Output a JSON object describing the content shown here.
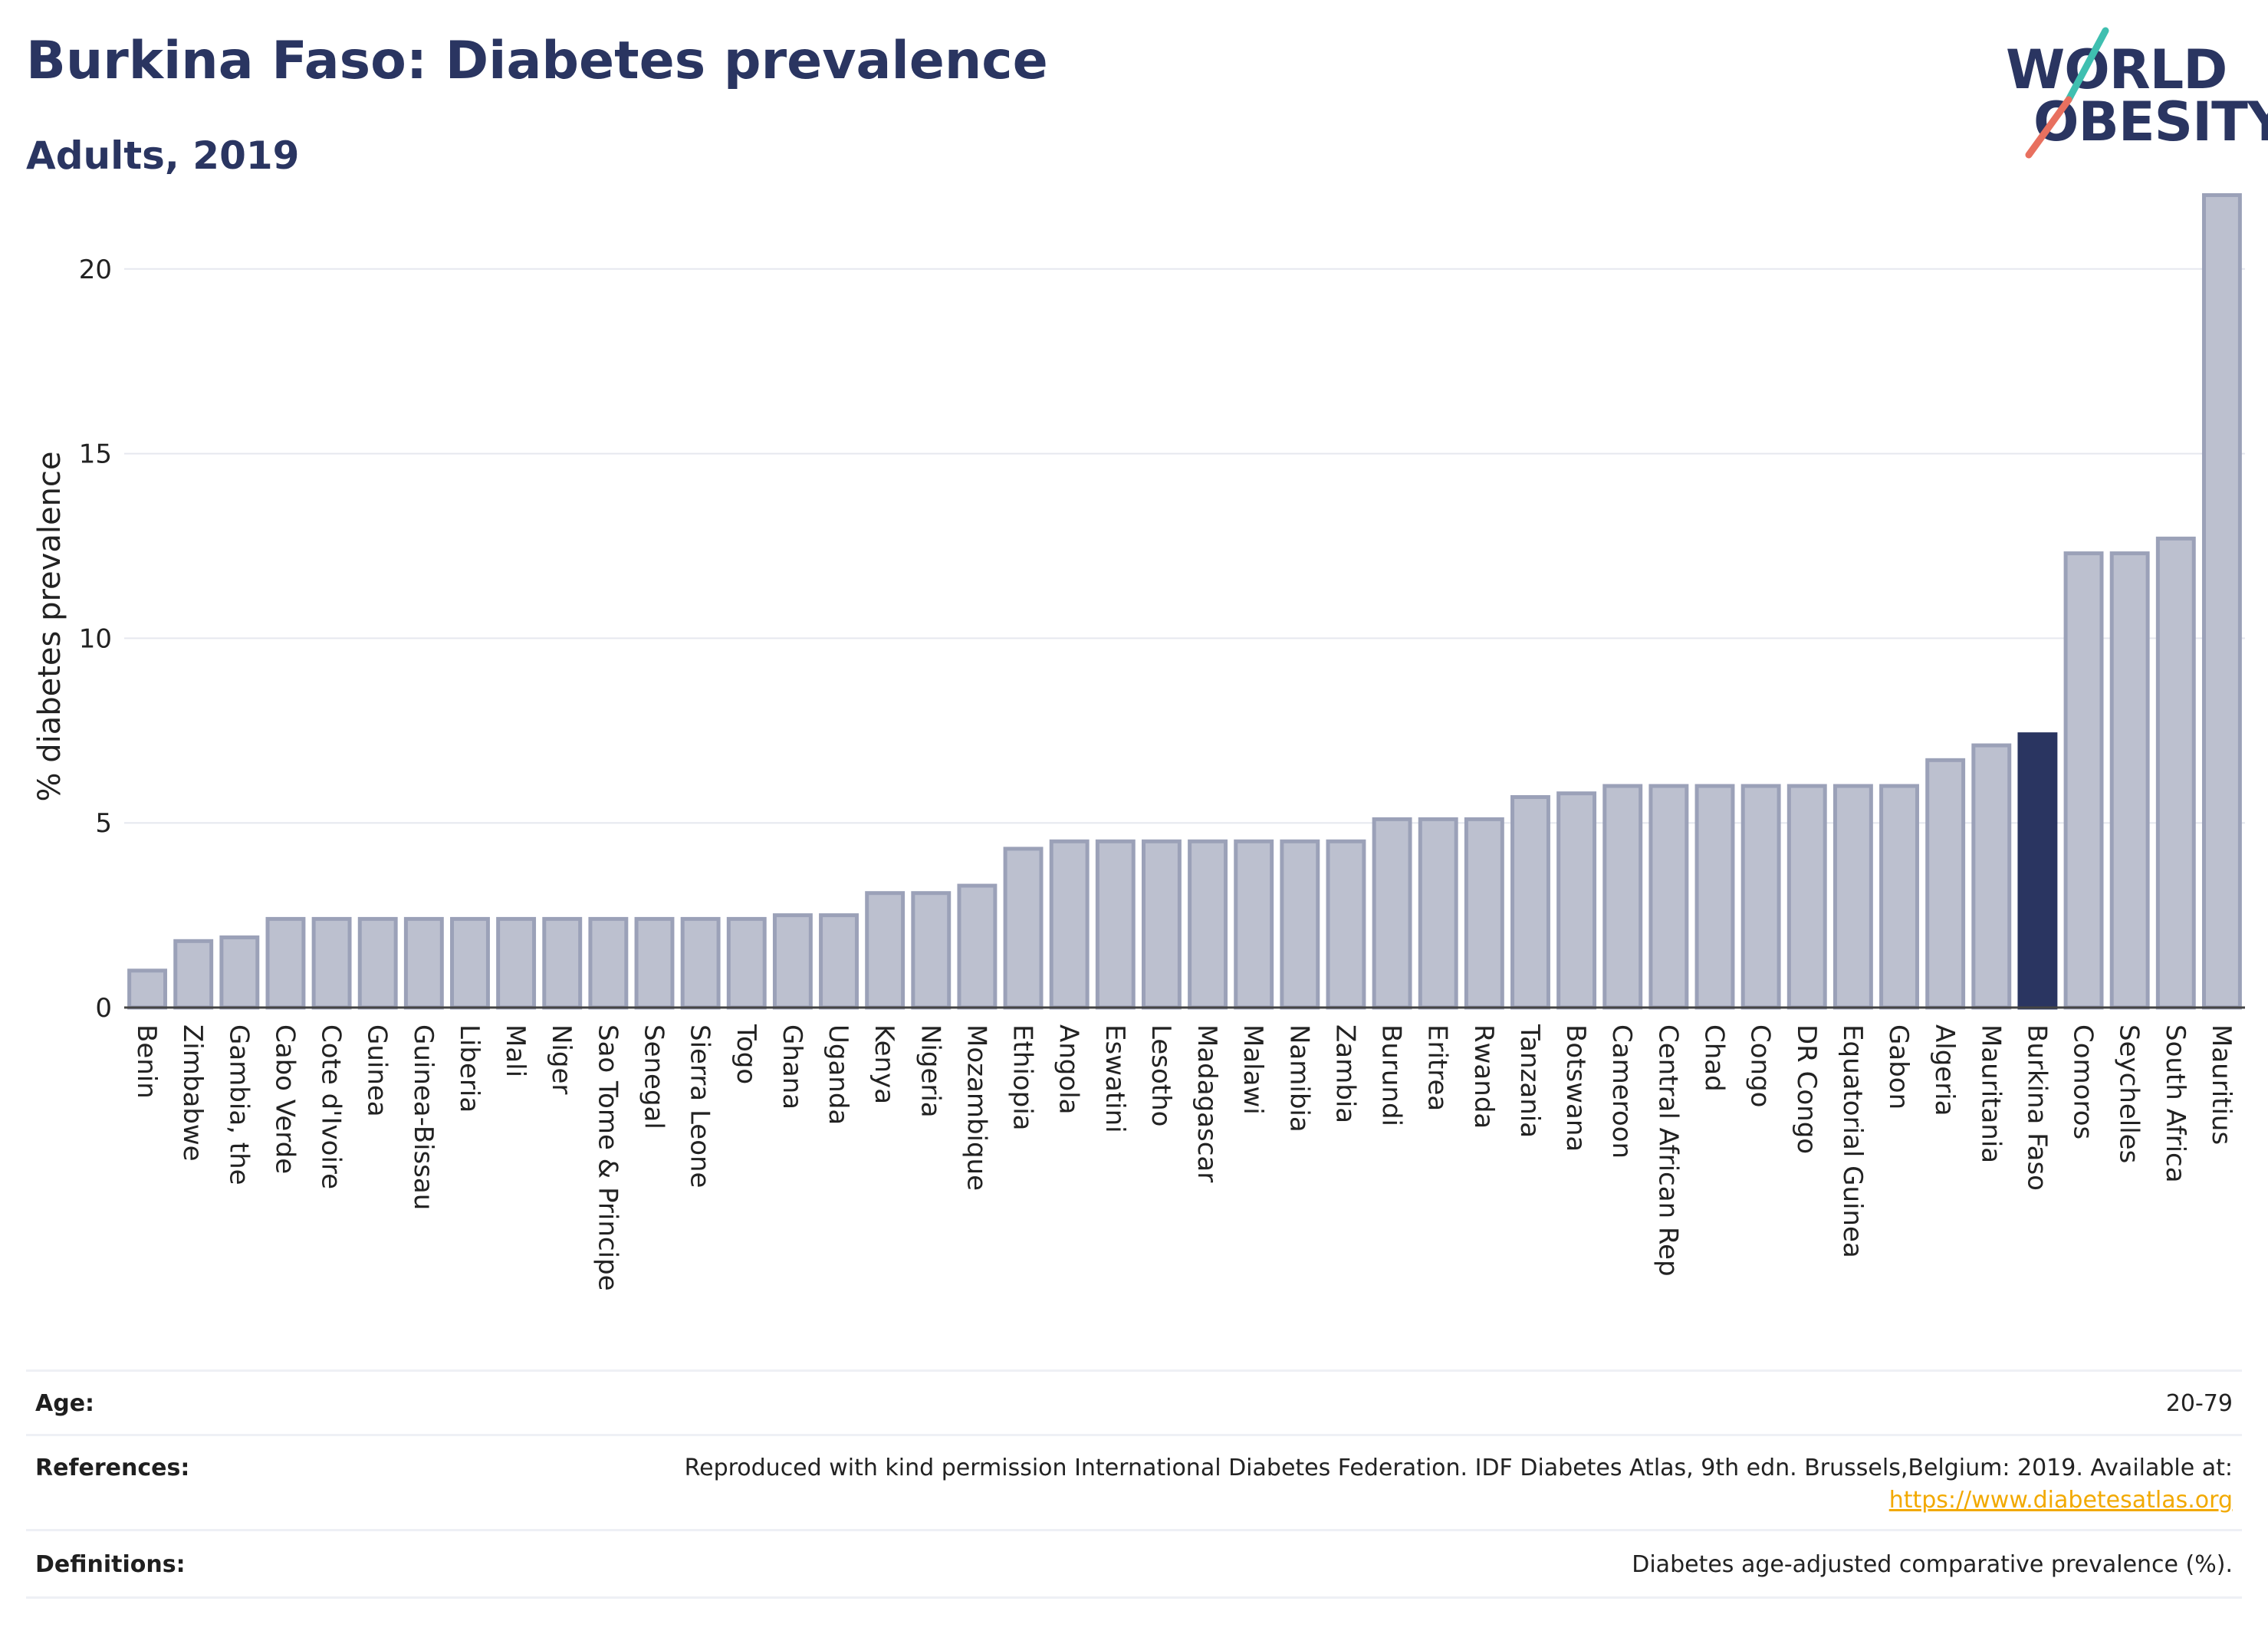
{
  "header": {
    "title": "Burkina Faso: Diabetes prevalence",
    "subtitle": "Adults, 2019"
  },
  "logo": {
    "line1": "WORLD",
    "line2": "OBESITY",
    "slash_colors": [
      "#3fbfb0",
      "#e8705f"
    ]
  },
  "colors": {
    "bar_default": "#bcc0cf",
    "bar_border": "#9ba1b8",
    "bar_highlight": "#2a3561",
    "text": "#2a3561",
    "link": "#f2a900"
  },
  "chart_data": {
    "type": "bar",
    "title": "Burkina Faso: Diabetes prevalence",
    "subtitle": "Adults, 2019",
    "xlabel": "",
    "ylabel": "% diabetes prevalence",
    "ylim": [
      0,
      22.3
    ],
    "yticks": [
      0,
      5,
      10,
      15,
      20
    ],
    "grid": true,
    "highlight": "Burkina Faso",
    "categories": [
      "Benin",
      "Zimbabwe",
      "Gambia, the",
      "Cabo Verde",
      "Cote d'Ivoire",
      "Guinea",
      "Guinea-Bissau",
      "Liberia",
      "Mali",
      "Niger",
      "Sao Tome & Principe",
      "Senegal",
      "Sierra Leone",
      "Togo",
      "Ghana",
      "Uganda",
      "Kenya",
      "Nigeria",
      "Mozambique",
      "Ethiopia",
      "Angola",
      "Eswatini",
      "Lesotho",
      "Madagascar",
      "Malawi",
      "Namibia",
      "Zambia",
      "Burundi",
      "Eritrea",
      "Rwanda",
      "Tanzania",
      "Botswana",
      "Cameroon",
      "Central African Rep",
      "Chad",
      "Congo",
      "DR Congo",
      "Equatorial Guinea",
      "Gabon",
      "Algeria",
      "Mauritania",
      "Burkina Faso",
      "Comoros",
      "Seychelles",
      "South Africa",
      "Mauritius"
    ],
    "values": [
      1.0,
      1.8,
      1.9,
      2.4,
      2.4,
      2.4,
      2.4,
      2.4,
      2.4,
      2.4,
      2.4,
      2.4,
      2.4,
      2.4,
      2.5,
      2.5,
      3.1,
      3.1,
      3.3,
      4.3,
      4.5,
      4.5,
      4.5,
      4.5,
      4.5,
      4.5,
      4.5,
      5.1,
      5.1,
      5.1,
      5.7,
      5.8,
      6.0,
      6.0,
      6.0,
      6.0,
      6.0,
      6.0,
      6.0,
      6.7,
      7.1,
      7.4,
      12.3,
      12.3,
      12.7,
      22.0
    ]
  },
  "info": {
    "age_label": "Age:",
    "age_value": "20-79",
    "references_label": "References:",
    "references_text": "Reproduced with kind permission International Diabetes Federation. IDF Diabetes Atlas, 9th edn. Brussels,Belgium: 2019. Available at:",
    "references_link": "https://www.diabetesatlas.org",
    "definitions_label": "Definitions:",
    "definitions_value": "Diabetes age-adjusted comparative prevalence (%)."
  }
}
